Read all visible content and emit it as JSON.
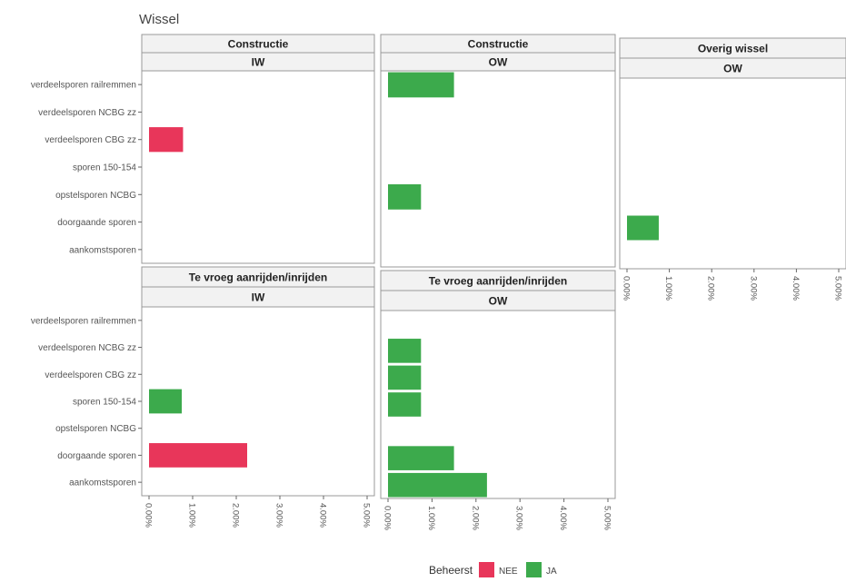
{
  "chart_data": {
    "type": "bar",
    "orientation": "horizontal",
    "title": "Wissel",
    "categories": [
      "verdeelsporen railremmen",
      "verdeelsporen NCBG zz",
      "verdeelsporen CBG zz",
      "sporen 150-154",
      "opstelsporen NCBG",
      "doorgaande sporen",
      "aankomstsporen"
    ],
    "x_ticks": [
      "0.00%",
      "1.00%",
      "2.00%",
      "3.00%",
      "4.00%",
      "5.00%"
    ],
    "xlim": [
      0,
      5
    ],
    "grid": false,
    "legend": {
      "title": "Beheerst",
      "position": "bottom",
      "entries": [
        {
          "label": "NEE",
          "color": "#e8365a"
        },
        {
          "label": "JA",
          "color": "#3caa4c"
        }
      ]
    },
    "panels": [
      {
        "strip_top": "Constructie",
        "strip_bottom": "IW",
        "bars": [
          {
            "category": "verdeelsporen CBG zz",
            "value": 0.78,
            "beheerst": "NEE"
          }
        ]
      },
      {
        "strip_top": "Constructie",
        "strip_bottom": "OW",
        "bars": [
          {
            "category": "verdeelsporen railremmen",
            "value": 1.5,
            "beheerst": "JA"
          },
          {
            "category": "opstelsporen NCBG",
            "value": 0.75,
            "beheerst": "JA"
          }
        ]
      },
      {
        "strip_top": "Overig wissel",
        "strip_bottom": "OW",
        "bars": [
          {
            "category": "doorgaande sporen",
            "value": 0.75,
            "beheerst": "JA"
          }
        ]
      },
      {
        "strip_top": "Te vroeg aanrijden/inrijden",
        "strip_bottom": "IW",
        "bars": [
          {
            "category": "sporen 150-154",
            "value": 0.75,
            "beheerst": "JA"
          },
          {
            "category": "doorgaande sporen",
            "value": 2.25,
            "beheerst": "NEE"
          }
        ]
      },
      {
        "strip_top": "Te vroeg aanrijden/inrijden",
        "strip_bottom": "OW",
        "bars": [
          {
            "category": "verdeelsporen NCBG zz",
            "value": 0.75,
            "beheerst": "JA"
          },
          {
            "category": "verdeelsporen CBG zz",
            "value": 0.75,
            "beheerst": "JA"
          },
          {
            "category": "sporen 150-154",
            "value": 0.75,
            "beheerst": "JA"
          },
          {
            "category": "doorgaande sporen",
            "value": 1.5,
            "beheerst": "JA"
          },
          {
            "category": "aankomstsporen",
            "value": 2.25,
            "beheerst": "JA"
          }
        ]
      }
    ]
  }
}
